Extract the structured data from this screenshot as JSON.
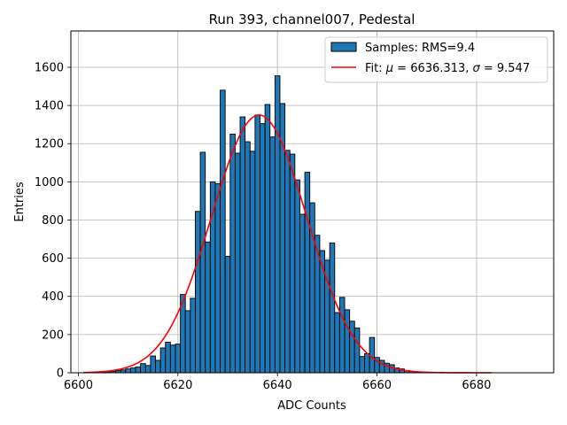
{
  "chart_data": {
    "type": "bar",
    "title": "Run 393, channel007, Pedestal",
    "xlabel": "ADC Counts",
    "ylabel": "Entries",
    "xlim": [
      6598.5,
      6695.5
    ],
    "ylim": [
      0,
      1790
    ],
    "xticks": [
      6600,
      6620,
      6640,
      6660,
      6680
    ],
    "yticks": [
      0,
      200,
      400,
      600,
      800,
      1000,
      1200,
      1400,
      1600
    ],
    "grid": true,
    "legend_position": "top-right",
    "bar_color": "#1f77b4",
    "bar_edge_color": "#000000",
    "fit_color": "#ff0000",
    "histogram": {
      "name": "Samples: RMS=9.4",
      "bin_width": 1,
      "bins": [
        [
          6603,
          2
        ],
        [
          6604,
          3
        ],
        [
          6605,
          4
        ],
        [
          6606,
          6
        ],
        [
          6607,
          8
        ],
        [
          6608,
          11
        ],
        [
          6609,
          15
        ],
        [
          6610,
          20
        ],
        [
          6611,
          25
        ],
        [
          6612,
          30
        ],
        [
          6613,
          48
        ],
        [
          6614,
          38
        ],
        [
          6615,
          88
        ],
        [
          6616,
          65
        ],
        [
          6617,
          130
        ],
        [
          6618,
          160
        ],
        [
          6619,
          145
        ],
        [
          6620,
          150
        ],
        [
          6621,
          410
        ],
        [
          6622,
          325
        ],
        [
          6623,
          390
        ],
        [
          6624,
          845
        ],
        [
          6625,
          1155
        ],
        [
          6626,
          685
        ],
        [
          6627,
          1000
        ],
        [
          6628,
          990
        ],
        [
          6629,
          1480
        ],
        [
          6630,
          610
        ],
        [
          6631,
          1250
        ],
        [
          6632,
          1150
        ],
        [
          6633,
          1340
        ],
        [
          6634,
          1210
        ],
        [
          6635,
          1160
        ],
        [
          6636,
          1350
        ],
        [
          6637,
          1305
        ],
        [
          6638,
          1405
        ],
        [
          6639,
          1235
        ],
        [
          6640,
          1555
        ],
        [
          6641,
          1410
        ],
        [
          6642,
          1165
        ],
        [
          6643,
          1145
        ],
        [
          6644,
          1010
        ],
        [
          6645,
          830
        ],
        [
          6646,
          1050
        ],
        [
          6647,
          890
        ],
        [
          6648,
          720
        ],
        [
          6649,
          640
        ],
        [
          6650,
          590
        ],
        [
          6651,
          680
        ],
        [
          6652,
          315
        ],
        [
          6653,
          395
        ],
        [
          6654,
          330
        ],
        [
          6655,
          270
        ],
        [
          6656,
          235
        ],
        [
          6657,
          85
        ],
        [
          6658,
          100
        ],
        [
          6659,
          185
        ],
        [
          6660,
          80
        ],
        [
          6661,
          65
        ],
        [
          6662,
          50
        ],
        [
          6663,
          42
        ],
        [
          6664,
          25
        ],
        [
          6665,
          20
        ],
        [
          6666,
          12
        ],
        [
          6667,
          7
        ],
        [
          6668,
          4
        ],
        [
          6669,
          2
        ]
      ]
    },
    "fit": {
      "name": "Fit: μ = 6636.313, σ = 9.547",
      "name_prefix": "Fit: ",
      "mu_symbol": "μ",
      "sigma_symbol": "σ",
      "mu_text": " = 6636.313, ",
      "sigma_text": " = 9.547",
      "type": "gaussian",
      "mu": 6636.313,
      "sigma": 9.547,
      "amplitude": 1350,
      "x_range": [
        6601,
        6683
      ]
    }
  }
}
